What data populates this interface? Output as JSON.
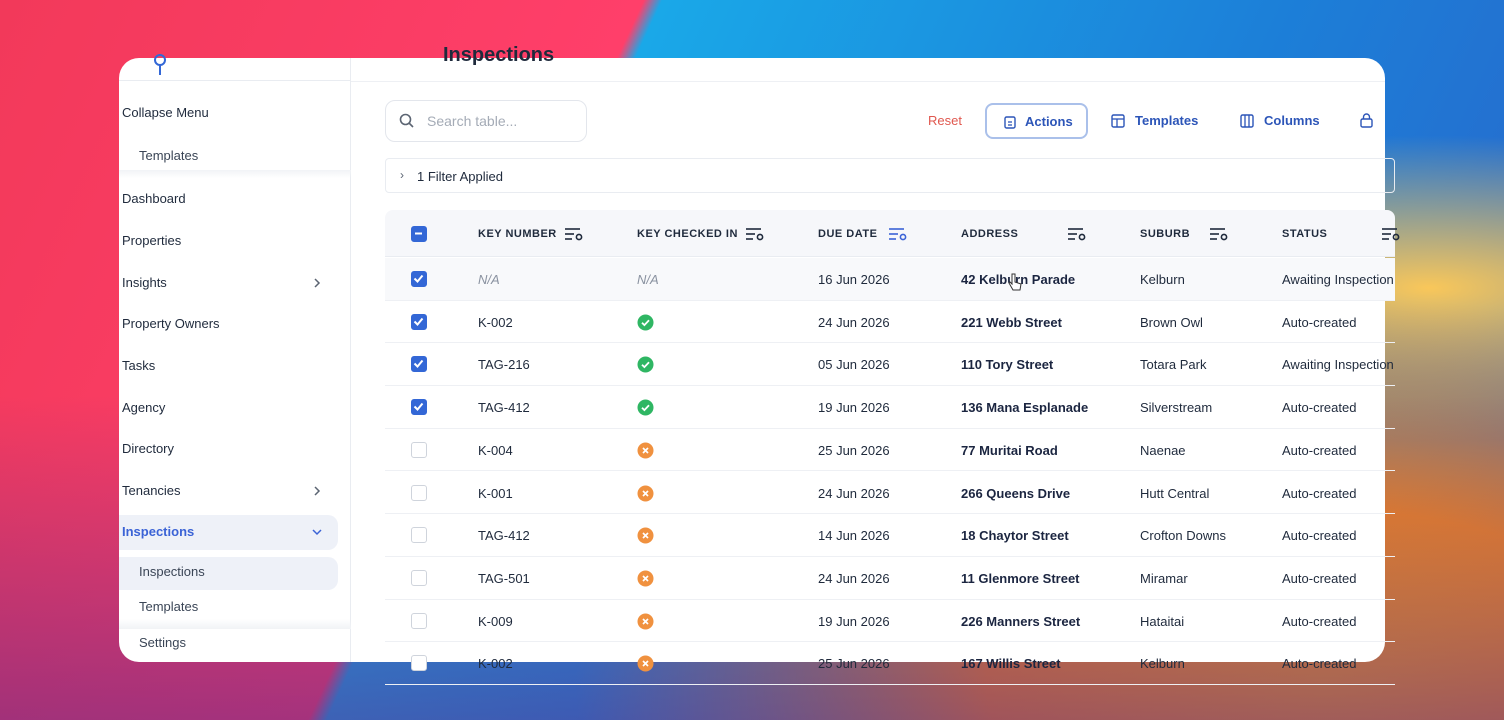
{
  "header": {
    "title": "Inspections"
  },
  "sidebar": {
    "collapse": "Collapse Menu",
    "items": [
      {
        "label": "Templates",
        "sub": true
      },
      {
        "label": "Dashboard"
      },
      {
        "label": "Properties"
      },
      {
        "label": "Insights",
        "chevron": "right"
      },
      {
        "label": "Property Owners"
      },
      {
        "label": "Tasks"
      },
      {
        "label": "Agency"
      },
      {
        "label": "Directory"
      },
      {
        "label": "Tenancies",
        "chevron": "right"
      },
      {
        "label": "Inspections",
        "chevron": "down",
        "active": true
      },
      {
        "label": "Inspections",
        "sub": true,
        "active": true
      },
      {
        "label": "Templates",
        "sub": true
      },
      {
        "label": "Settings",
        "sub": true
      }
    ]
  },
  "toolbar": {
    "search_placeholder": "Search table...",
    "reset": "Reset",
    "actions": "Actions",
    "templates": "Templates",
    "columns": "Columns"
  },
  "filter": {
    "label": "1 Filter Applied"
  },
  "table": {
    "header_checked": true,
    "columns": [
      "KEY NUMBER",
      "KEY CHECKED IN",
      "DUE DATE",
      "ADDRESS",
      "SUBURB",
      "STATUS"
    ],
    "rows": [
      {
        "selected": true,
        "key_number": "N/A",
        "key_checked_in": "N/A",
        "due_date": "16 Jun 2026",
        "address": "42 Kelburn Parade",
        "suburb": "Kelburn",
        "status": "Awaiting Inspection"
      },
      {
        "selected": true,
        "key_number": "K-002",
        "key_checked_in": true,
        "due_date": "24 Jun 2026",
        "address": "221 Webb Street",
        "suburb": "Brown Owl",
        "status": "Auto-created"
      },
      {
        "selected": true,
        "key_number": "TAG-216",
        "key_checked_in": true,
        "due_date": "05 Jun 2026",
        "address": "110 Tory Street",
        "suburb": "Totara Park",
        "status": "Awaiting Inspection"
      },
      {
        "selected": true,
        "key_number": "TAG-412",
        "key_checked_in": true,
        "due_date": "19 Jun 2026",
        "address": "136 Mana Esplanade",
        "suburb": "Silverstream",
        "status": "Auto-created"
      },
      {
        "selected": false,
        "key_number": "K-004",
        "key_checked_in": false,
        "due_date": "25 Jun 2026",
        "address": "77 Muritai Road",
        "suburb": "Naenae",
        "status": "Auto-created"
      },
      {
        "selected": false,
        "key_number": "K-001",
        "key_checked_in": false,
        "due_date": "24 Jun 2026",
        "address": "266 Queens Drive",
        "suburb": "Hutt Central",
        "status": "Auto-created"
      },
      {
        "selected": false,
        "key_number": "TAG-412",
        "key_checked_in": false,
        "due_date": "14 Jun 2026",
        "address": "18 Chaytor Street",
        "suburb": "Crofton Downs",
        "status": "Auto-created"
      },
      {
        "selected": false,
        "key_number": "TAG-501",
        "key_checked_in": false,
        "due_date": "24 Jun 2026",
        "address": "11 Glenmore Street",
        "suburb": "Miramar",
        "status": "Auto-created"
      },
      {
        "selected": false,
        "key_number": "K-009",
        "key_checked_in": false,
        "due_date": "19 Jun 2026",
        "address": "226 Manners Street",
        "suburb": "Hataitai",
        "status": "Auto-created"
      },
      {
        "selected": false,
        "key_number": "K-002",
        "key_checked_in": false,
        "due_date": "25 Jun 2026",
        "address": "167 Willis Street",
        "suburb": "Kelburn",
        "status": "Auto-created"
      }
    ]
  }
}
